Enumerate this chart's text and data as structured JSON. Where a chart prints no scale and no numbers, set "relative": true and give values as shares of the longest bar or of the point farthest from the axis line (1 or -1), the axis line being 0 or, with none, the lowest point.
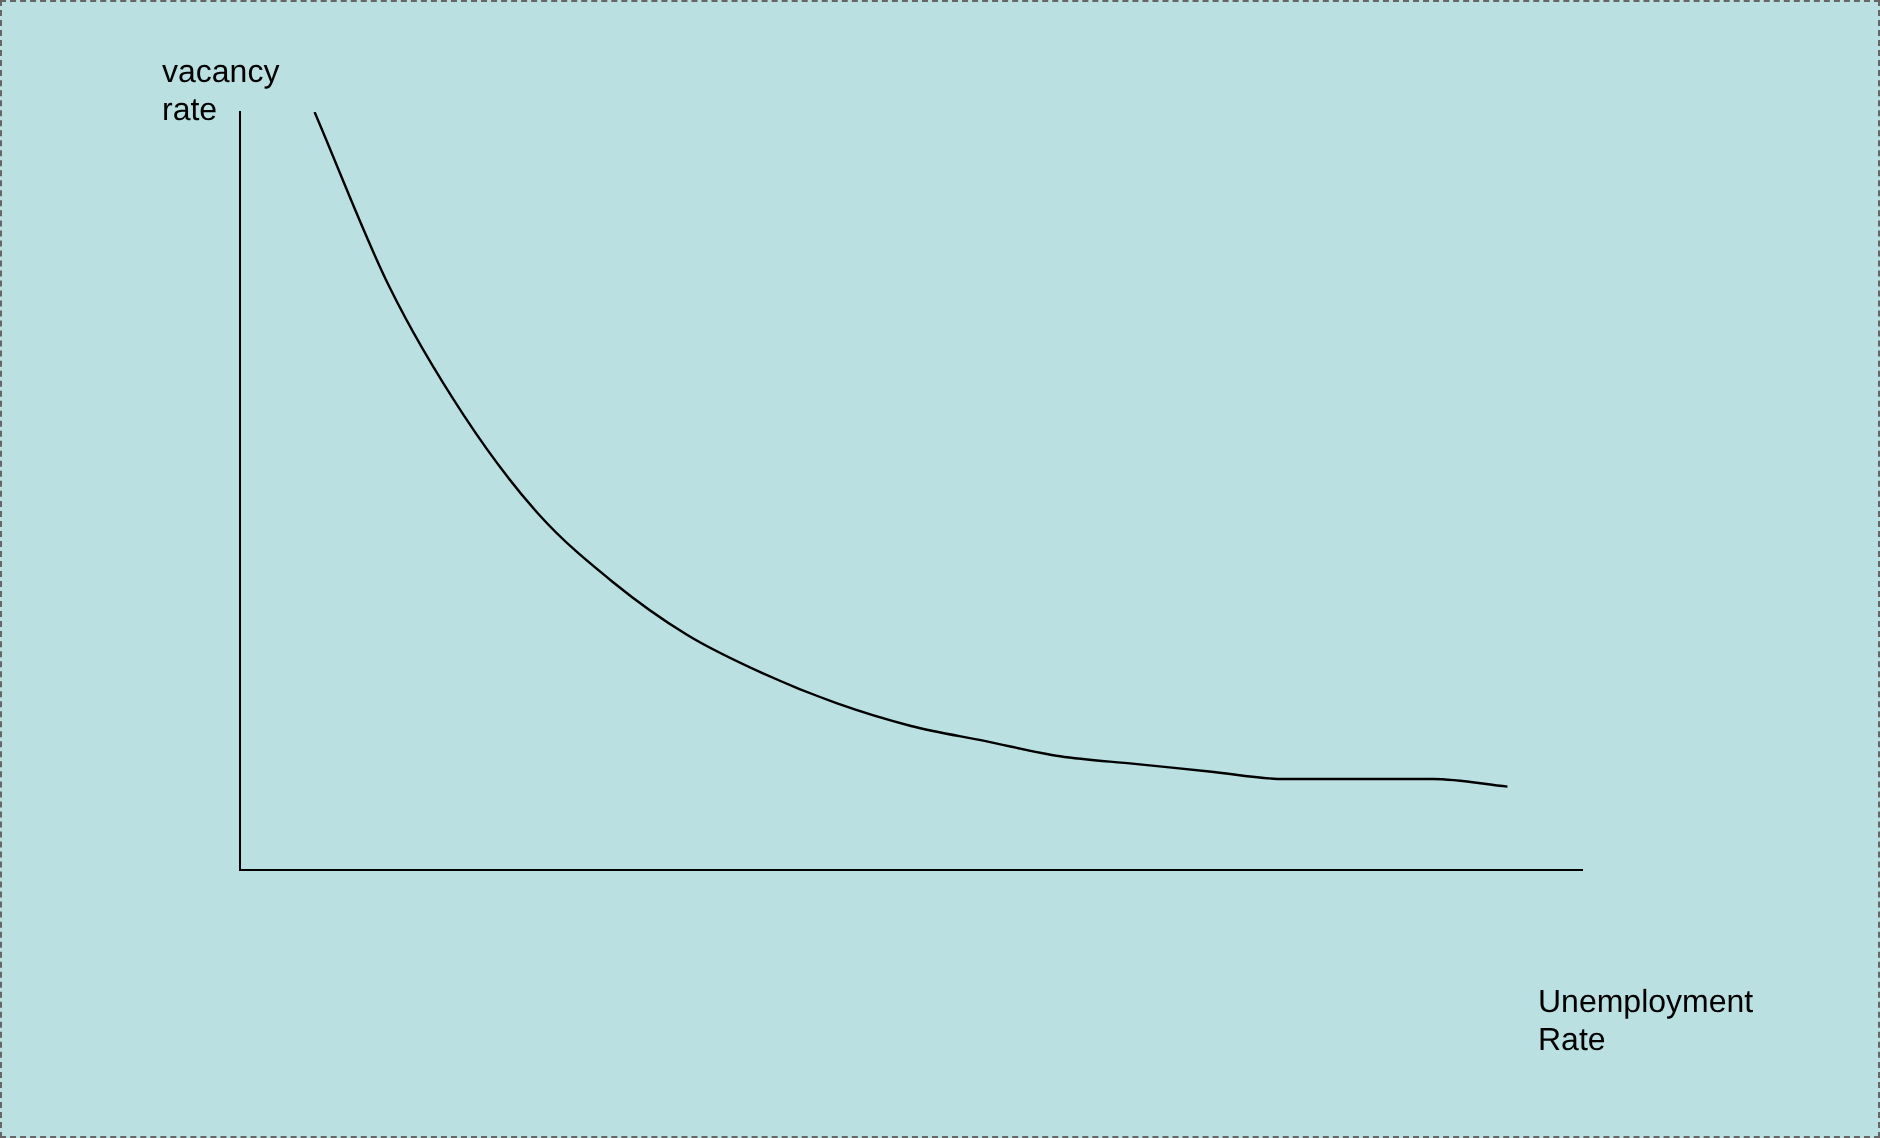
{
  "chart_data": {
    "type": "line",
    "relative": true,
    "xlabel": "Unemployment Rate",
    "ylabel": "vacancy rate",
    "categories": [
      null,
      null,
      null,
      null,
      null,
      null,
      null,
      null,
      null,
      null,
      null,
      null,
      null,
      null,
      null,
      null,
      null,
      null,
      null
    ],
    "series": [
      {
        "color": "#000000",
        "values": [
          null,
          1.0,
          0.77,
          0.6,
          0.47,
          0.38,
          0.31,
          0.26,
          0.22,
          0.19,
          0.17,
          0.15,
          0.14,
          0.13,
          0.12,
          0.12,
          0.12,
          0.11,
          null
        ]
      }
    ]
  }
}
